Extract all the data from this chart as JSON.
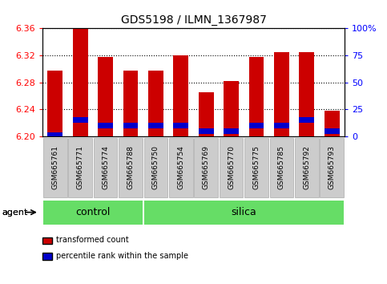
{
  "title": "GDS5198 / ILMN_1367987",
  "samples": [
    "GSM665761",
    "GSM665771",
    "GSM665774",
    "GSM665788",
    "GSM665750",
    "GSM665754",
    "GSM665769",
    "GSM665770",
    "GSM665775",
    "GSM665785",
    "GSM665792",
    "GSM665793"
  ],
  "groups": [
    "control",
    "control",
    "control",
    "control",
    "silica",
    "silica",
    "silica",
    "silica",
    "silica",
    "silica",
    "silica",
    "silica"
  ],
  "transformed_count": [
    6.298,
    6.36,
    6.318,
    6.298,
    6.298,
    6.32,
    6.265,
    6.282,
    6.318,
    6.325,
    6.325,
    6.238
  ],
  "percentile_rank": [
    1,
    15,
    10,
    10,
    10,
    10,
    5,
    5,
    10,
    10,
    15,
    5
  ],
  "y_min": 6.2,
  "y_max": 6.36,
  "y_ticks": [
    6.2,
    6.24,
    6.28,
    6.32,
    6.36
  ],
  "y2_ticks": [
    0,
    25,
    50,
    75,
    100
  ],
  "bar_color": "#cc0000",
  "pct_color": "#0000cc",
  "control_color": "#66dd66",
  "silica_color": "#66dd66",
  "tick_label_bg": "#cccccc",
  "tick_label_edge": "#999999",
  "agent_label": "agent",
  "legend_items": [
    "transformed count",
    "percentile rank within the sample"
  ]
}
